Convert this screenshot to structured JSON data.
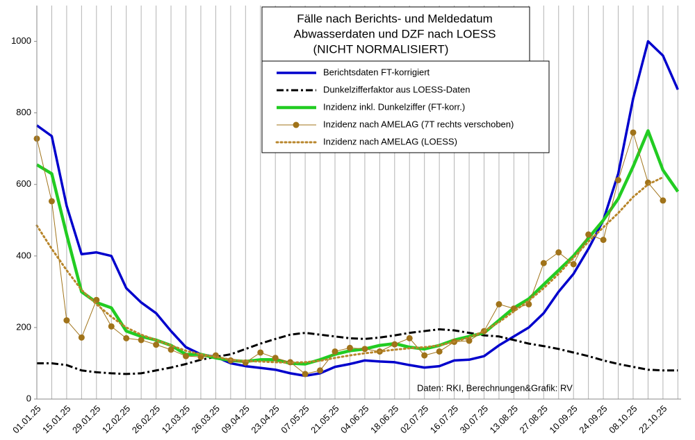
{
  "chart_data": {
    "type": "line",
    "title": [
      "Fälle nach Berichts- und Meldedatum",
      "Abwasserdaten und DZF nach LOESS",
      "(NICHT NORMALISIERT)"
    ],
    "annotation": "Daten: RKI, Berechnungen&Grafik: RV",
    "categories": [
      "01.01.25",
      null,
      "15.01.25",
      null,
      "29.01.25",
      null,
      "12.02.25",
      null,
      "26.02.25",
      null,
      "12.03.25",
      null,
      "26.03.25",
      null,
      "09.04.25",
      null,
      "23.04.25",
      null,
      "07.05.25",
      null,
      "21.05.25",
      null,
      "04.06.25",
      null,
      "18.06.25",
      null,
      "02.07.25",
      null,
      "16.07.25",
      null,
      "30.07.25",
      null,
      "13.08.25",
      null,
      "27.08.25",
      null,
      "10.09.25",
      null,
      "24.09.25",
      null,
      "08.10.25",
      null,
      "22.10.25",
      null
    ],
    "ylim": [
      0,
      1100
    ],
    "yticks": [
      0,
      200,
      400,
      600,
      800,
      1000
    ],
    "grid": "x",
    "series": [
      {
        "name": "Berichtsdaten FT-korrigiert",
        "color": "#0000cc",
        "style": "solid",
        "values": [
          765,
          735,
          540,
          405,
          410,
          400,
          310,
          270,
          240,
          190,
          145,
          125,
          118,
          100,
          92,
          87,
          82,
          72,
          65,
          72,
          90,
          98,
          108,
          105,
          103,
          95,
          88,
          92,
          108,
          110,
          120,
          150,
          175,
          200,
          240,
          300,
          350,
          420,
          500,
          630,
          840,
          1000,
          960,
          865
        ]
      },
      {
        "name": "Dunkelzifferfaktor aus LOESS-Daten",
        "color": "#000000",
        "style": "dashdot",
        "values": [
          100,
          100,
          95,
          80,
          75,
          72,
          70,
          72,
          80,
          88,
          98,
          110,
          118,
          125,
          140,
          155,
          168,
          180,
          185,
          180,
          175,
          170,
          168,
          172,
          178,
          185,
          190,
          195,
          192,
          185,
          178,
          175,
          165,
          155,
          148,
          140,
          130,
          120,
          108,
          98,
          90,
          82,
          80,
          80
        ]
      },
      {
        "name": "Inzidenz inkl. Dunkelziffer (FT-korr.)",
        "color": "#22cc22",
        "style": "solid",
        "values": [
          655,
          630,
          460,
          300,
          270,
          255,
          190,
          175,
          165,
          150,
          125,
          125,
          115,
          108,
          105,
          110,
          110,
          100,
          98,
          110,
          125,
          135,
          140,
          150,
          155,
          145,
          140,
          150,
          165,
          175,
          185,
          220,
          255,
          280,
          320,
          360,
          400,
          450,
          500,
          560,
          650,
          750,
          640,
          580
        ]
      },
      {
        "name": "Inzidenz nach AMELAG (7T rechts verschoben)",
        "color": "#a0731a",
        "style": "marker",
        "values": [
          728,
          553,
          220,
          172,
          277,
          203,
          170,
          165,
          152,
          138,
          120,
          118,
          122,
          108,
          102,
          130,
          115,
          103,
          70,
          80,
          133,
          143,
          140,
          133,
          153,
          170,
          122,
          133,
          160,
          163,
          190,
          265,
          253,
          265,
          380,
          410,
          377,
          460,
          445,
          612,
          745,
          605,
          555,
          null
        ]
      },
      {
        "name": "Inzidenz nach AMELAG (LOESS)",
        "color": "#b8862b",
        "style": "dotted",
        "values": [
          485,
          420,
          360,
          305,
          265,
          230,
          200,
          180,
          165,
          150,
          135,
          125,
          118,
          110,
          106,
          105,
          103,
          102,
          103,
          107,
          115,
          122,
          128,
          133,
          138,
          142,
          145,
          150,
          160,
          172,
          190,
          215,
          245,
          275,
          310,
          350,
          395,
          440,
          480,
          520,
          565,
          600,
          620,
          null
        ]
      }
    ]
  }
}
